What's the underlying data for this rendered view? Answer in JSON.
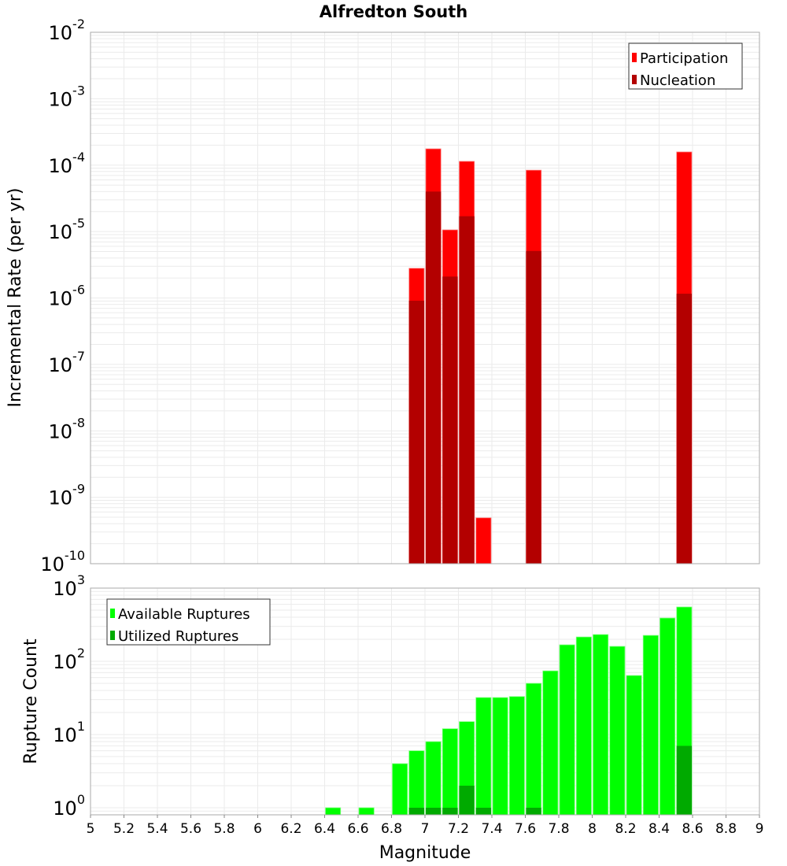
{
  "chart_data": [
    {
      "type": "bar",
      "title": "Alfredton South",
      "xlabel": "Magnitude",
      "ylabel": "Incremental Rate (per yr)",
      "yscale": "log",
      "xlim": [
        5,
        9
      ],
      "ylim": [
        1e-10,
        0.01
      ],
      "ytick_exponents": [
        -10,
        -9,
        -8,
        -7,
        -6,
        -5,
        -4,
        -3,
        -2
      ],
      "bin_width": 0.1,
      "legend": "top-right",
      "grid": true,
      "series": [
        {
          "name": "Participation",
          "color": "#ff0000",
          "x": [
            6.95,
            7.05,
            7.15,
            7.25,
            7.35,
            7.65,
            8.55
          ],
          "values": [
            2.8e-06,
            0.000176,
            1.06e-05,
            0.000114,
            4.9e-10,
            8.4e-05,
            0.000158
          ]
        },
        {
          "name": "Nucleation",
          "color": "#b30000",
          "x": [
            6.95,
            7.05,
            7.15,
            7.25,
            7.65,
            8.55
          ],
          "values": [
            9.1e-07,
            4e-05,
            2.1e-06,
            1.7e-05,
            5.1e-06,
            1.16e-06
          ]
        }
      ]
    },
    {
      "type": "bar",
      "xlabel": "Magnitude",
      "ylabel": "Rupture Count",
      "yscale": "log",
      "xlim": [
        5,
        9
      ],
      "ylim": [
        0.8,
        1000
      ],
      "ytick_exponents": [
        0,
        1,
        2,
        3
      ],
      "xticks": [
        "5",
        "5.2",
        "5.4",
        "5.6",
        "5.8",
        "6",
        "6.2",
        "6.4",
        "6.6",
        "6.8",
        "7",
        "7.2",
        "7.4",
        "7.6",
        "7.8",
        "8",
        "8.2",
        "8.4",
        "8.6",
        "8.8",
        "9"
      ],
      "bin_width": 0.1,
      "legend": "top-left",
      "grid": true,
      "series": [
        {
          "name": "Available Ruptures",
          "color": "#00ff00",
          "x": [
            6.45,
            6.65,
            6.85,
            6.95,
            7.05,
            7.15,
            7.25,
            7.35,
            7.45,
            7.55,
            7.65,
            7.75,
            7.85,
            7.95,
            8.05,
            8.15,
            8.25,
            8.35,
            8.45,
            8.55
          ],
          "values": [
            1,
            1,
            4,
            6,
            8,
            12,
            15,
            32,
            32,
            33,
            50,
            74,
            168,
            215,
            232,
            160,
            64,
            226,
            390,
            552
          ]
        },
        {
          "name": "Utilized Ruptures",
          "color": "#00aa00",
          "x": [
            6.95,
            7.05,
            7.15,
            7.25,
            7.35,
            7.65,
            8.55
          ],
          "values": [
            1,
            1,
            1,
            2,
            1,
            1,
            7
          ]
        }
      ]
    }
  ]
}
